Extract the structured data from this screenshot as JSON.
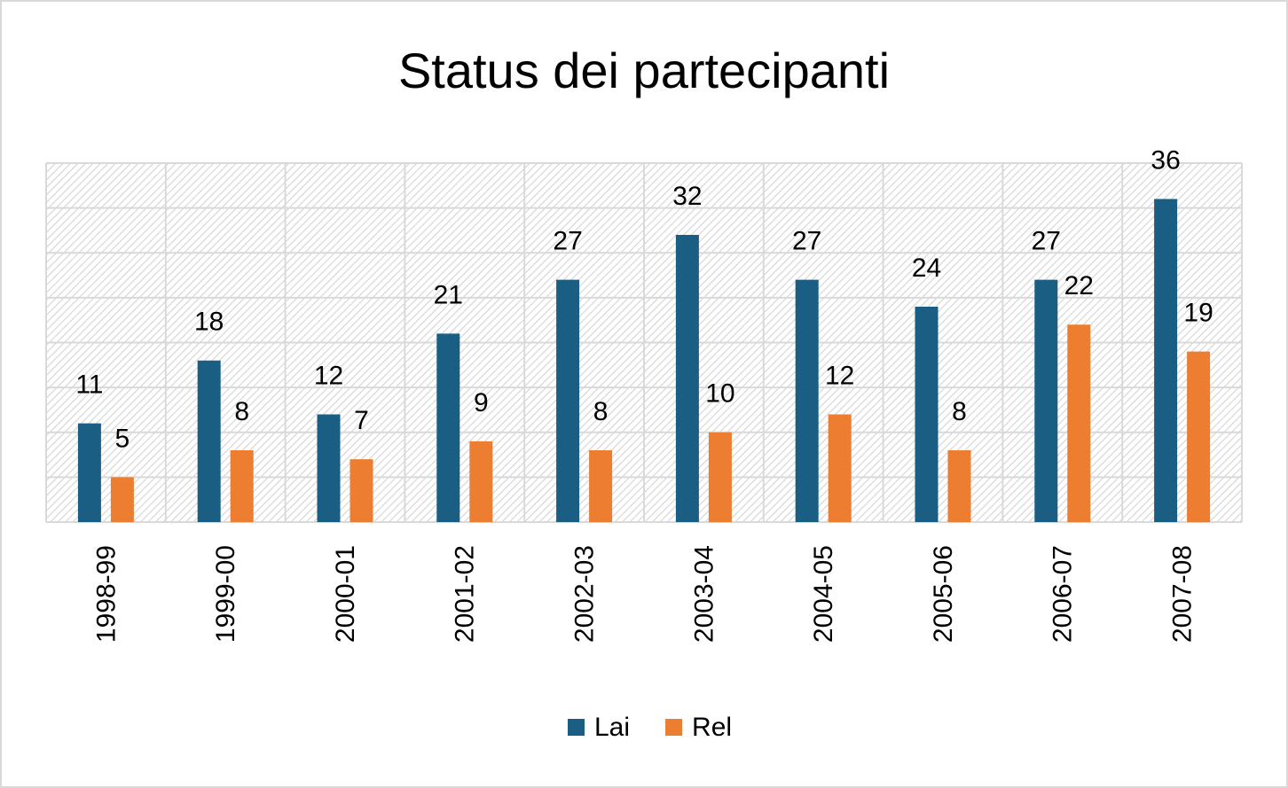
{
  "chart_data": {
    "type": "bar",
    "title": "Status dei partecipanti",
    "categories": [
      "1998-99",
      "1999-00",
      "2000-01",
      "2001-02",
      "2002-03",
      "2003-04",
      "2004-05",
      "2005-06",
      "2006-07",
      "2007-08"
    ],
    "series": [
      {
        "name": "Lai",
        "color": "#1b5e83",
        "values": [
          11,
          18,
          12,
          21,
          27,
          32,
          27,
          24,
          27,
          36
        ]
      },
      {
        "name": "Rel",
        "color": "#ed7d31",
        "values": [
          5,
          8,
          7,
          9,
          8,
          10,
          12,
          8,
          22,
          19
        ]
      }
    ],
    "ylim": [
      0,
      40
    ],
    "yticks": [
      0,
      5,
      10,
      15,
      20,
      25,
      30,
      35,
      40
    ],
    "grid": true
  }
}
